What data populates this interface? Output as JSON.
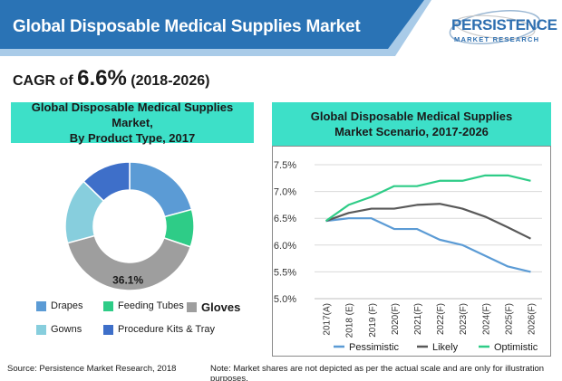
{
  "header": {
    "title": "Global Disposable Medical Supplies Market",
    "banner_color": "#2a73b5",
    "accent_color": "#a9cbe8"
  },
  "logo": {
    "name": "PERSISTENCE",
    "tagline": "MARKET RESEARCH"
  },
  "cagr": {
    "prefix": "CAGR of",
    "value": "6.6%",
    "range": "(2018-2026)"
  },
  "left_panel": {
    "title_line1": "Global Disposable Medical Supplies Market,",
    "title_line2": "By Product Type, 2017",
    "header_color": "#3de0c8"
  },
  "right_panel": {
    "title_line1": "Global Disposable Medical Supplies",
    "title_line2": "Market Scenario, 2017-2026",
    "header_color": "#3de0c8"
  },
  "chart_data": [
    {
      "type": "pie",
      "categories": [
        "Drapes",
        "Feeding Tubes",
        "Gloves",
        "Gowns",
        "Procedure Kits & Tray"
      ],
      "values": [
        18.5,
        8.4,
        36.1,
        14.7,
        11.3
      ],
      "colors": [
        "#5b9bd5",
        "#2ecc87",
        "#9e9e9e",
        "#87cedd",
        "#3e6fc9"
      ],
      "data_labels": [
        "",
        "",
        "36.1%",
        "",
        ""
      ],
      "legend": "bottom",
      "donut": true
    },
    {
      "type": "line",
      "x": [
        "2017(A)",
        "2018 (E)",
        "2019 (F)",
        "2020(F)",
        "2021(F)",
        "2022(F)",
        "2023(F)",
        "2024(F)",
        "2025(F)",
        "2026(F)"
      ],
      "series": [
        {
          "name": "Pessimistic",
          "color": "#5b9bd5",
          "values": [
            6.45,
            6.5,
            6.5,
            6.3,
            6.3,
            6.1,
            6.0,
            5.8,
            5.6,
            5.5
          ]
        },
        {
          "name": "Likely",
          "color": "#595959",
          "values": [
            6.45,
            6.6,
            6.68,
            6.68,
            6.75,
            6.77,
            6.68,
            6.53,
            6.33,
            6.12
          ]
        },
        {
          "name": "Optimistic",
          "color": "#2ecc87",
          "values": [
            6.45,
            6.75,
            6.9,
            7.1,
            7.1,
            7.2,
            7.2,
            7.3,
            7.3,
            7.2
          ]
        }
      ],
      "y_ticks": [
        "7.5%",
        "7.0%",
        "6.5%",
        "6.0%",
        "5.5%",
        "5.0%"
      ],
      "ylim": [
        5.0,
        7.5
      ],
      "grid": "horizontal",
      "legend": "bottom"
    }
  ],
  "footer": {
    "source": "Source: Persistence Market Research, 2018",
    "note": "Note: Market shares are not depicted as per the actual scale and are only for illustration purposes."
  }
}
